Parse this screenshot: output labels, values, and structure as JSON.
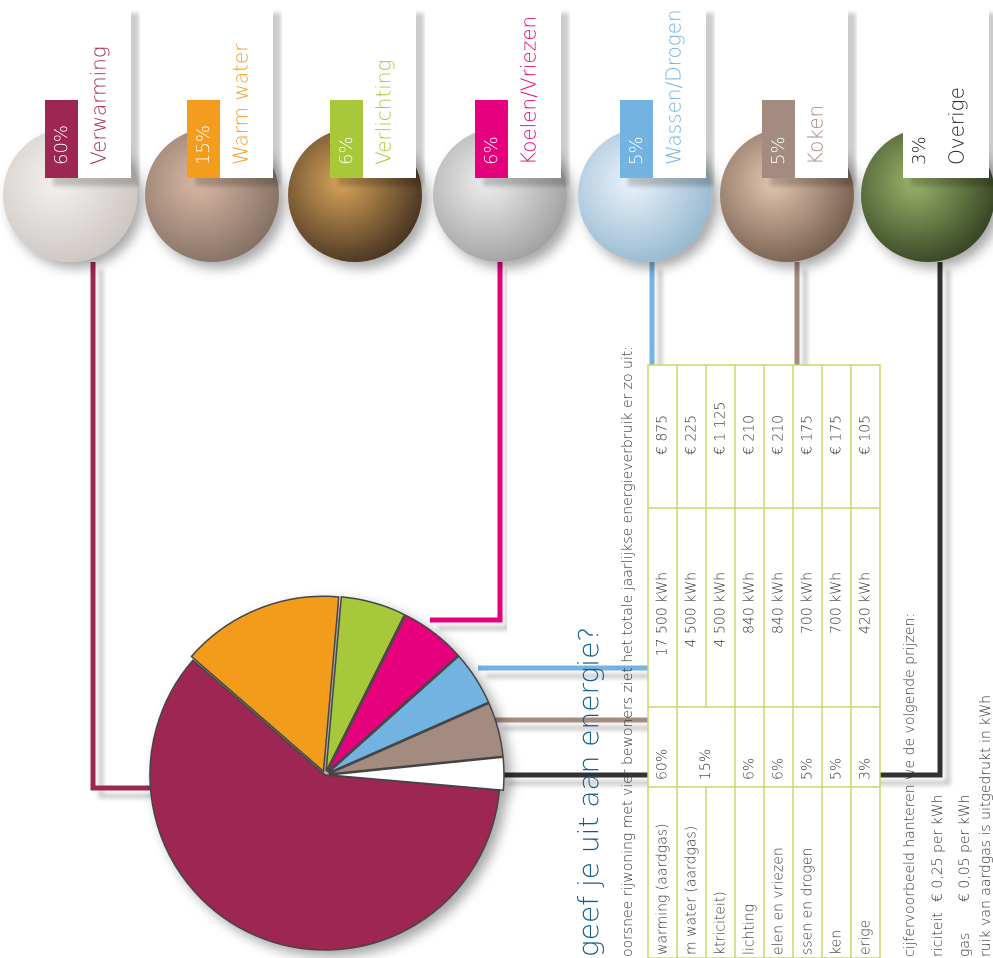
{
  "chart_data": {
    "type": "pie",
    "categories": [
      "Verwarming",
      "Warm water",
      "Verlichting",
      "Koelen/Vriezen",
      "Wassen/Drogen",
      "Koken",
      "Overige"
    ],
    "values": [
      60,
      15,
      6,
      6,
      5,
      5,
      3
    ],
    "value_labels": [
      "60%",
      "15%",
      "6%",
      "6%",
      "5%",
      "5%",
      "3%"
    ],
    "colors": [
      "#9e2652",
      "#f39c1e",
      "#a8c83a",
      "#e6007e",
      "#72b3e2",
      "#a48b80",
      "#ffffff"
    ]
  },
  "title": "geef je uit aan energie?",
  "subtitle": "oorsnee rijwoning met vier bewoners ziet het totale jaarlijkse energieverbruik er zo uit:",
  "table": {
    "rows": [
      {
        "label": "warming (aardgas)",
        "pct": "60%",
        "kwh": "17 500 kWh",
        "cost": "€ 875"
      },
      {
        "label": "m water (aardgas)",
        "pct": "15%",
        "kwh": "4 500 kWh",
        "cost": "€ 225"
      },
      {
        "label": "ktriciteit)",
        "kwh": "4 500 kWh",
        "cost": "€ 1 125"
      },
      {
        "label": "lichting",
        "pct": "6%",
        "kwh": "840 kWh",
        "cost": "€ 210"
      },
      {
        "label": "elen en vriezen",
        "pct": "6%",
        "kwh": "840 kWh",
        "cost": "€ 210"
      },
      {
        "label": "ssen en drogen",
        "pct": "5%",
        "kwh": "700 kWh",
        "cost": "€ 175"
      },
      {
        "label": "ken",
        "pct": "5%",
        "kwh": "700 kWh",
        "cost": "€ 175"
      },
      {
        "label": "erige",
        "pct": "3%",
        "kwh": "420 kWh",
        "cost": "€ 105"
      }
    ]
  },
  "notes": {
    "intro": "cijfervoorbeeld hanteren we de volgende prijzen:",
    "prices": [
      {
        "label": "riciteit",
        "price": "€ 0,25 per kWh"
      },
      {
        "label": "gas",
        "price": "€ 0,05 per kWh"
      }
    ],
    "footer": "ruik van aardgas is uitgedrukt in kWh"
  }
}
